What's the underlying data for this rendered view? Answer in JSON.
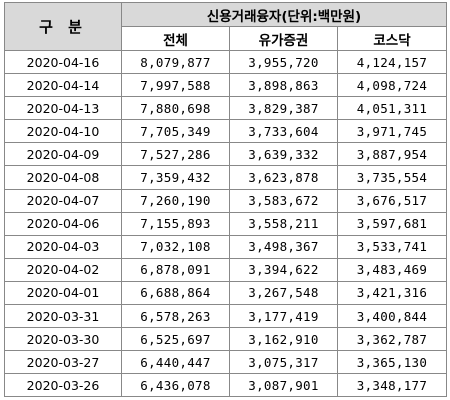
{
  "table": {
    "row_header": "구 분",
    "group_header": "신용거래융자(단위:백만원)",
    "columns": [
      "전체",
      "유가증권",
      "코스닥"
    ],
    "rows": [
      {
        "date": "2020-04-16",
        "total": "8,079,877",
        "kospi": "3,955,720",
        "kosdaq": "4,124,157"
      },
      {
        "date": "2020-04-14",
        "total": "7,997,588",
        "kospi": "3,898,863",
        "kosdaq": "4,098,724"
      },
      {
        "date": "2020-04-13",
        "total": "7,880,698",
        "kospi": "3,829,387",
        "kosdaq": "4,051,311"
      },
      {
        "date": "2020-04-10",
        "total": "7,705,349",
        "kospi": "3,733,604",
        "kosdaq": "3,971,745"
      },
      {
        "date": "2020-04-09",
        "total": "7,527,286",
        "kospi": "3,639,332",
        "kosdaq": "3,887,954"
      },
      {
        "date": "2020-04-08",
        "total": "7,359,432",
        "kospi": "3,623,878",
        "kosdaq": "3,735,554"
      },
      {
        "date": "2020-04-07",
        "total": "7,260,190",
        "kospi": "3,583,672",
        "kosdaq": "3,676,517"
      },
      {
        "date": "2020-04-06",
        "total": "7,155,893",
        "kospi": "3,558,211",
        "kosdaq": "3,597,681"
      },
      {
        "date": "2020-04-03",
        "total": "7,032,108",
        "kospi": "3,498,367",
        "kosdaq": "3,533,741"
      },
      {
        "date": "2020-04-02",
        "total": "6,878,091",
        "kospi": "3,394,622",
        "kosdaq": "3,483,469"
      },
      {
        "date": "2020-04-01",
        "total": "6,688,864",
        "kospi": "3,267,548",
        "kosdaq": "3,421,316"
      },
      {
        "date": "2020-03-31",
        "total": "6,578,263",
        "kospi": "3,177,419",
        "kosdaq": "3,400,844"
      },
      {
        "date": "2020-03-30",
        "total": "6,525,697",
        "kospi": "3,162,910",
        "kosdaq": "3,362,787"
      },
      {
        "date": "2020-03-27",
        "total": "6,440,447",
        "kospi": "3,075,317",
        "kosdaq": "3,365,130"
      },
      {
        "date": "2020-03-26",
        "total": "6,436,078",
        "kospi": "3,087,901",
        "kosdaq": "3,348,177"
      }
    ]
  }
}
